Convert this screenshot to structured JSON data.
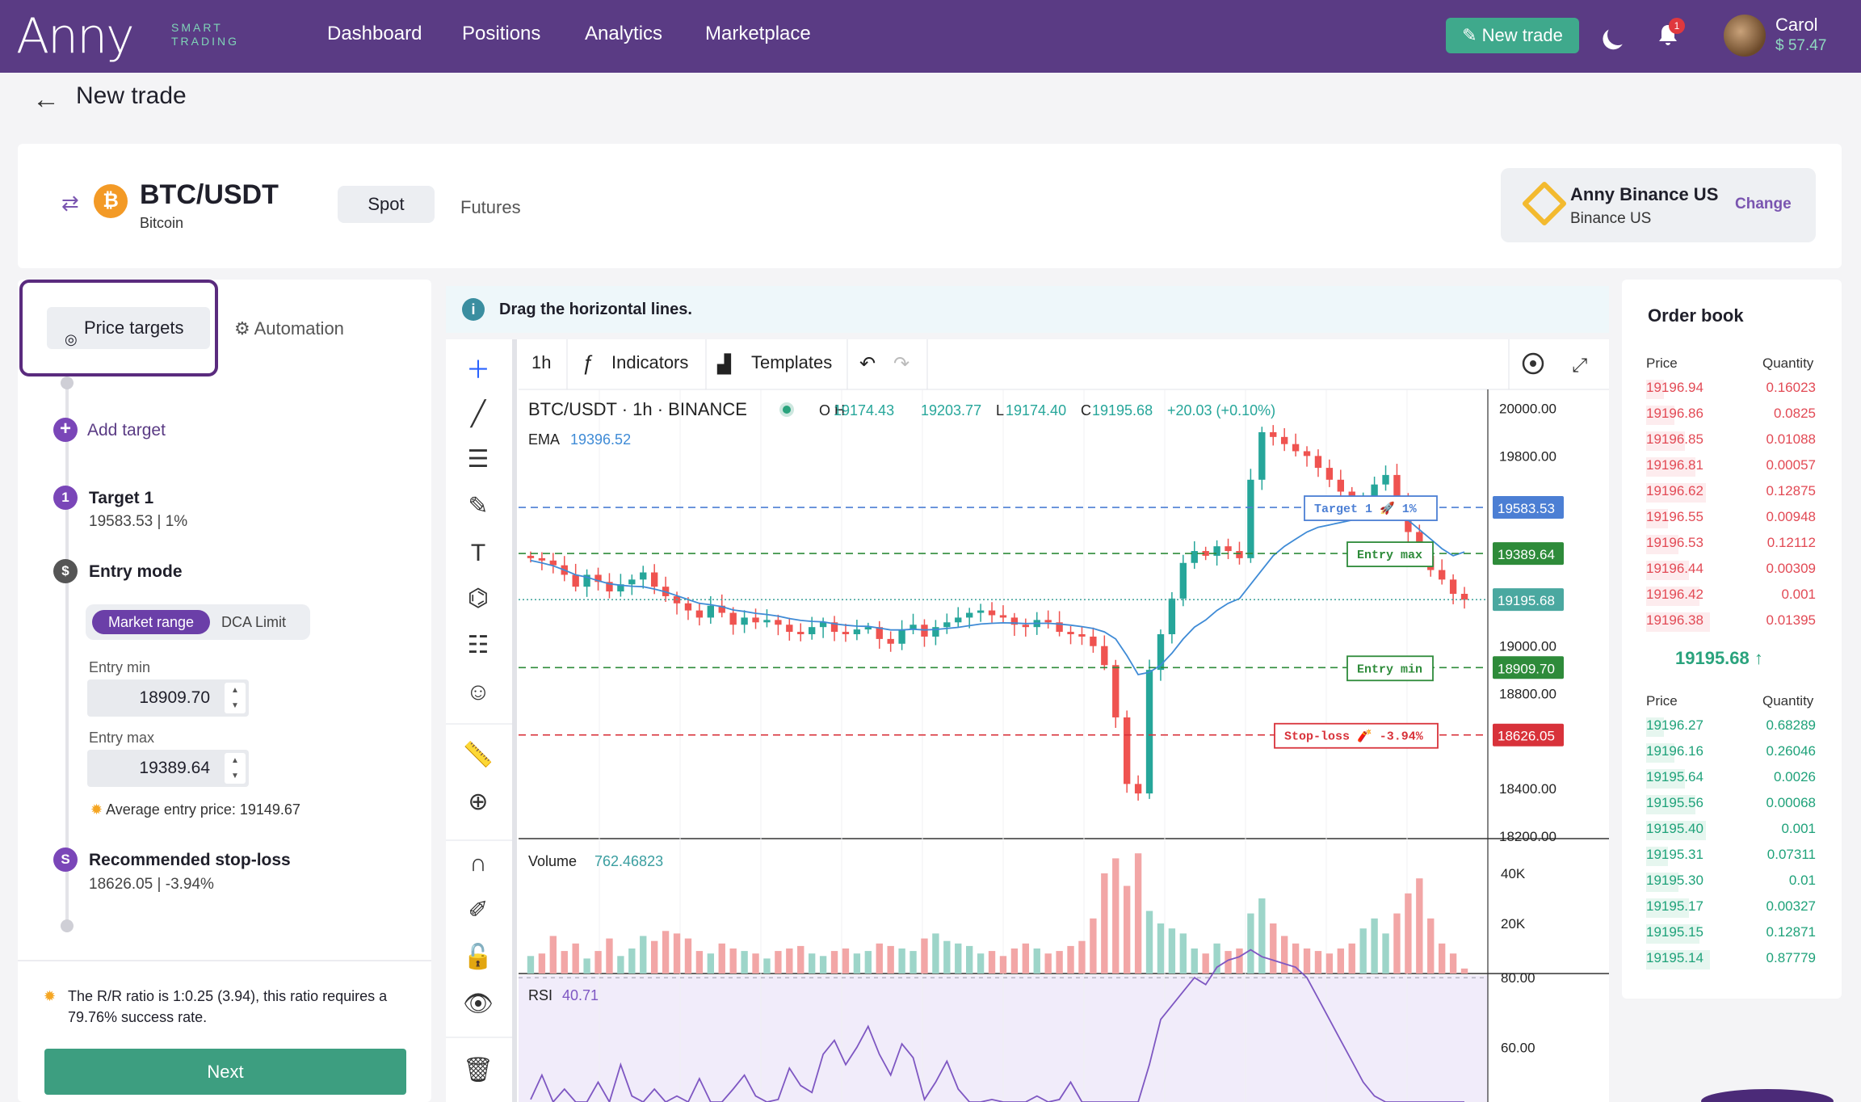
{
  "brand": {
    "name": "Anny",
    "tagline_1": "SMART",
    "tagline_2": "TRADING"
  },
  "nav": [
    "Dashboard",
    "Positions",
    "Analytics",
    "Marketplace"
  ],
  "header": {
    "new_trade": "New trade",
    "notifications": "1",
    "user_name": "Carol",
    "user_balance": "$ 57.47"
  },
  "page": {
    "title": "New trade"
  },
  "pair": {
    "symbol": "BTC/USDT",
    "name": "Bitcoin",
    "coin_glyph": "₿",
    "market_tabs": [
      "Spot",
      "Futures"
    ]
  },
  "exchange": {
    "name": "Anny Binance US",
    "sub": "Binance US",
    "change": "Change"
  },
  "left": {
    "tabs": [
      "Price targets",
      "Automation"
    ],
    "add_target": "Add target",
    "target": {
      "num": "1",
      "title": "Target 1",
      "value": "19583.53 | 1%"
    },
    "entry": {
      "icon": "$",
      "title": "Entry mode",
      "modes": [
        "Market range",
        "DCA Limit"
      ],
      "min_label": "Entry min",
      "min": "18909.70",
      "max_label": "Entry max",
      "max": "19389.64",
      "avg": "Average entry price: 19149.67"
    },
    "stoploss": {
      "icon": "S",
      "title": "Recommended stop-loss",
      "value": "18626.05 | -3.94%"
    },
    "rr": "The R/R ratio is 1:0.25 (3.94), this ratio requires a 79.76% success rate.",
    "next": "Next"
  },
  "hint": {
    "icon": "i",
    "text": "Drag the horizontal lines."
  },
  "chart_toolbar": {
    "interval": "1h",
    "indicators": "Indicators",
    "templates": "Templates"
  },
  "chart_legend": {
    "symbol": "BTC/USDT",
    "interval": "1h",
    "exchange": "BINANCE",
    "o": "O",
    "open": "19174.43",
    "h": "H",
    "high": "19203.77",
    "l": "L",
    "low": "19174.40",
    "c": "C",
    "close": "19195.68",
    "change": "+20.03 (+0.10%)",
    "ema_label": "EMA",
    "ema_value": "19396.52",
    "vol_label": "Volume",
    "vol_value": "762.46823",
    "rsi_label": "RSI",
    "rsi_value": "40.71"
  },
  "chart_data": {
    "type": "candlestick",
    "price_axis": {
      "ticks": [
        "20000.00",
        "19800.00",
        "19000.00",
        "18800.00",
        "18400.00",
        "18200.00"
      ],
      "range": [
        18190,
        20080
      ]
    },
    "volume_axis": {
      "ticks": [
        "40K",
        "20K"
      ],
      "range": [
        0,
        50000
      ]
    },
    "rsi_axis": {
      "ticks": [
        "80.00",
        "60.00"
      ],
      "range": [
        35,
        90
      ]
    },
    "lines": [
      {
        "label": "Target 1 🚀 1%",
        "value": 19583.53,
        "price_tag": "19583.53",
        "color": "#4c7fd4"
      },
      {
        "label": "Entry max",
        "value": 19389.64,
        "price_tag": "19389.64",
        "color": "#2e8b3a"
      },
      {
        "label": "",
        "value": 19195.68,
        "price_tag": "19195.68",
        "color": "#4aa8a0"
      },
      {
        "label": "Entry min",
        "value": 18909.7,
        "price_tag": "18909.70",
        "color": "#2e8b3a"
      },
      {
        "label": "Stop-loss 🧨 -3.94%",
        "value": 18626.05,
        "price_tag": "18626.05",
        "color": "#d8323a"
      }
    ],
    "close": [
      19370,
      19360,
      19340,
      19300,
      19250,
      19300,
      19270,
      19230,
      19260,
      19280,
      19310,
      19250,
      19210,
      19180,
      19150,
      19120,
      19170,
      19140,
      19090,
      19120,
      19100,
      19110,
      19090,
      19060,
      19050,
      19080,
      19100,
      19060,
      19050,
      19070,
      19080,
      19030,
      19010,
      19070,
      19090,
      19040,
      19080,
      19100,
      19120,
      19140,
      19150,
      19130,
      19120,
      19090,
      19080,
      19110,
      19100,
      19060,
      19050,
      19040,
      19000,
      18920,
      18700,
      18420,
      18380,
      18900,
      19050,
      19200,
      19350,
      19400,
      19380,
      19420,
      19400,
      19370,
      19700,
      19900,
      19880,
      19850,
      19820,
      19800,
      19750,
      19700,
      19650,
      19600,
      19620,
      19680,
      19720,
      19620,
      19480,
      19380,
      19320,
      19280,
      19220,
      19195
    ],
    "ema": [
      19360,
      19350,
      19338,
      19320,
      19300,
      19290,
      19275,
      19262,
      19256,
      19252,
      19250,
      19240,
      19228,
      19212,
      19196,
      19180,
      19174,
      19166,
      19152,
      19146,
      19138,
      19133,
      19126,
      19116,
      19108,
      19104,
      19102,
      19094,
      19088,
      19084,
      19083,
      19076,
      19068,
      19068,
      19071,
      19068,
      19070,
      19074,
      19079,
      19086,
      19093,
      19096,
      19098,
      19097,
      19095,
      19096,
      19096,
      19093,
      19088,
      19082,
      19074,
      19060,
      19030,
      18960,
      18880,
      18890,
      18920,
      18970,
      19030,
      19080,
      19110,
      19150,
      19180,
      19200,
      19260,
      19320,
      19380,
      19420,
      19450,
      19480,
      19500,
      19510,
      19520,
      19530,
      19540,
      19550,
      19565,
      19560,
      19530,
      19490,
      19450,
      19410,
      19380,
      19396
    ],
    "volume": [
      7000,
      8000,
      15000,
      9000,
      12000,
      6000,
      9000,
      14000,
      7000,
      10000,
      15000,
      13000,
      17000,
      16000,
      14000,
      9000,
      8000,
      12000,
      10000,
      9000,
      8000,
      6000,
      9000,
      10000,
      11000,
      8000,
      7000,
      9000,
      10000,
      8000,
      9000,
      12000,
      11000,
      10000,
      9000,
      14000,
      16000,
      13000,
      12000,
      11000,
      8000,
      9000,
      7000,
      10000,
      12000,
      10000,
      8000,
      9000,
      11000,
      13000,
      22000,
      40000,
      46000,
      35000,
      48000,
      25000,
      20000,
      18000,
      16000,
      10000,
      8000,
      12000,
      9000,
      10000,
      24000,
      30000,
      20000,
      15000,
      12000,
      10000,
      9000,
      8000,
      10000,
      12000,
      18000,
      22000,
      16000,
      24000,
      32000,
      38000,
      22000,
      12000,
      8000,
      2000
    ],
    "rsi": [
      45,
      52,
      40,
      48,
      38,
      44,
      50,
      42,
      55,
      46,
      40,
      48,
      43,
      46,
      42,
      51,
      44,
      40,
      48,
      52,
      46,
      42,
      45,
      54,
      49,
      47,
      58,
      62,
      55,
      60,
      66,
      58,
      52,
      61,
      57,
      45,
      50,
      56,
      48,
      43,
      38,
      45,
      40,
      36,
      42,
      46,
      40,
      45,
      50,
      44,
      40,
      37,
      35,
      38,
      42,
      55,
      68,
      72,
      76,
      80,
      78,
      83,
      85,
      86,
      88,
      86,
      85,
      84,
      83,
      80,
      74,
      68,
      62,
      56,
      50,
      46,
      42,
      44,
      41,
      40,
      42,
      39,
      40,
      41
    ]
  },
  "order_book": {
    "title": "Order book",
    "col_price": "Price",
    "col_qty": "Quantity",
    "asks": [
      [
        "19196.94",
        "0.16023"
      ],
      [
        "19196.86",
        "0.0825"
      ],
      [
        "19196.85",
        "0.01088"
      ],
      [
        "19196.81",
        "0.00057"
      ],
      [
        "19196.62",
        "0.12875"
      ],
      [
        "19196.55",
        "0.00948"
      ],
      [
        "19196.53",
        "0.12112"
      ],
      [
        "19196.44",
        "0.00309"
      ],
      [
        "19196.42",
        "0.001"
      ],
      [
        "19196.38",
        "0.01395"
      ]
    ],
    "mid": "19195.68",
    "bids": [
      [
        "19196.27",
        "0.68289"
      ],
      [
        "19196.16",
        "0.26046"
      ],
      [
        "19195.64",
        "0.0026"
      ],
      [
        "19195.56",
        "0.00068"
      ],
      [
        "19195.40",
        "0.001"
      ],
      [
        "19195.31",
        "0.07311"
      ],
      [
        "19195.30",
        "0.01"
      ],
      [
        "19195.17",
        "0.00327"
      ],
      [
        "19195.15",
        "0.12871"
      ],
      [
        "19195.14",
        "0.87779"
      ]
    ]
  },
  "colors": {
    "brand": "#5a3b84",
    "accent": "#3fa98c",
    "up": "#26a69a",
    "down": "#ef5350"
  }
}
